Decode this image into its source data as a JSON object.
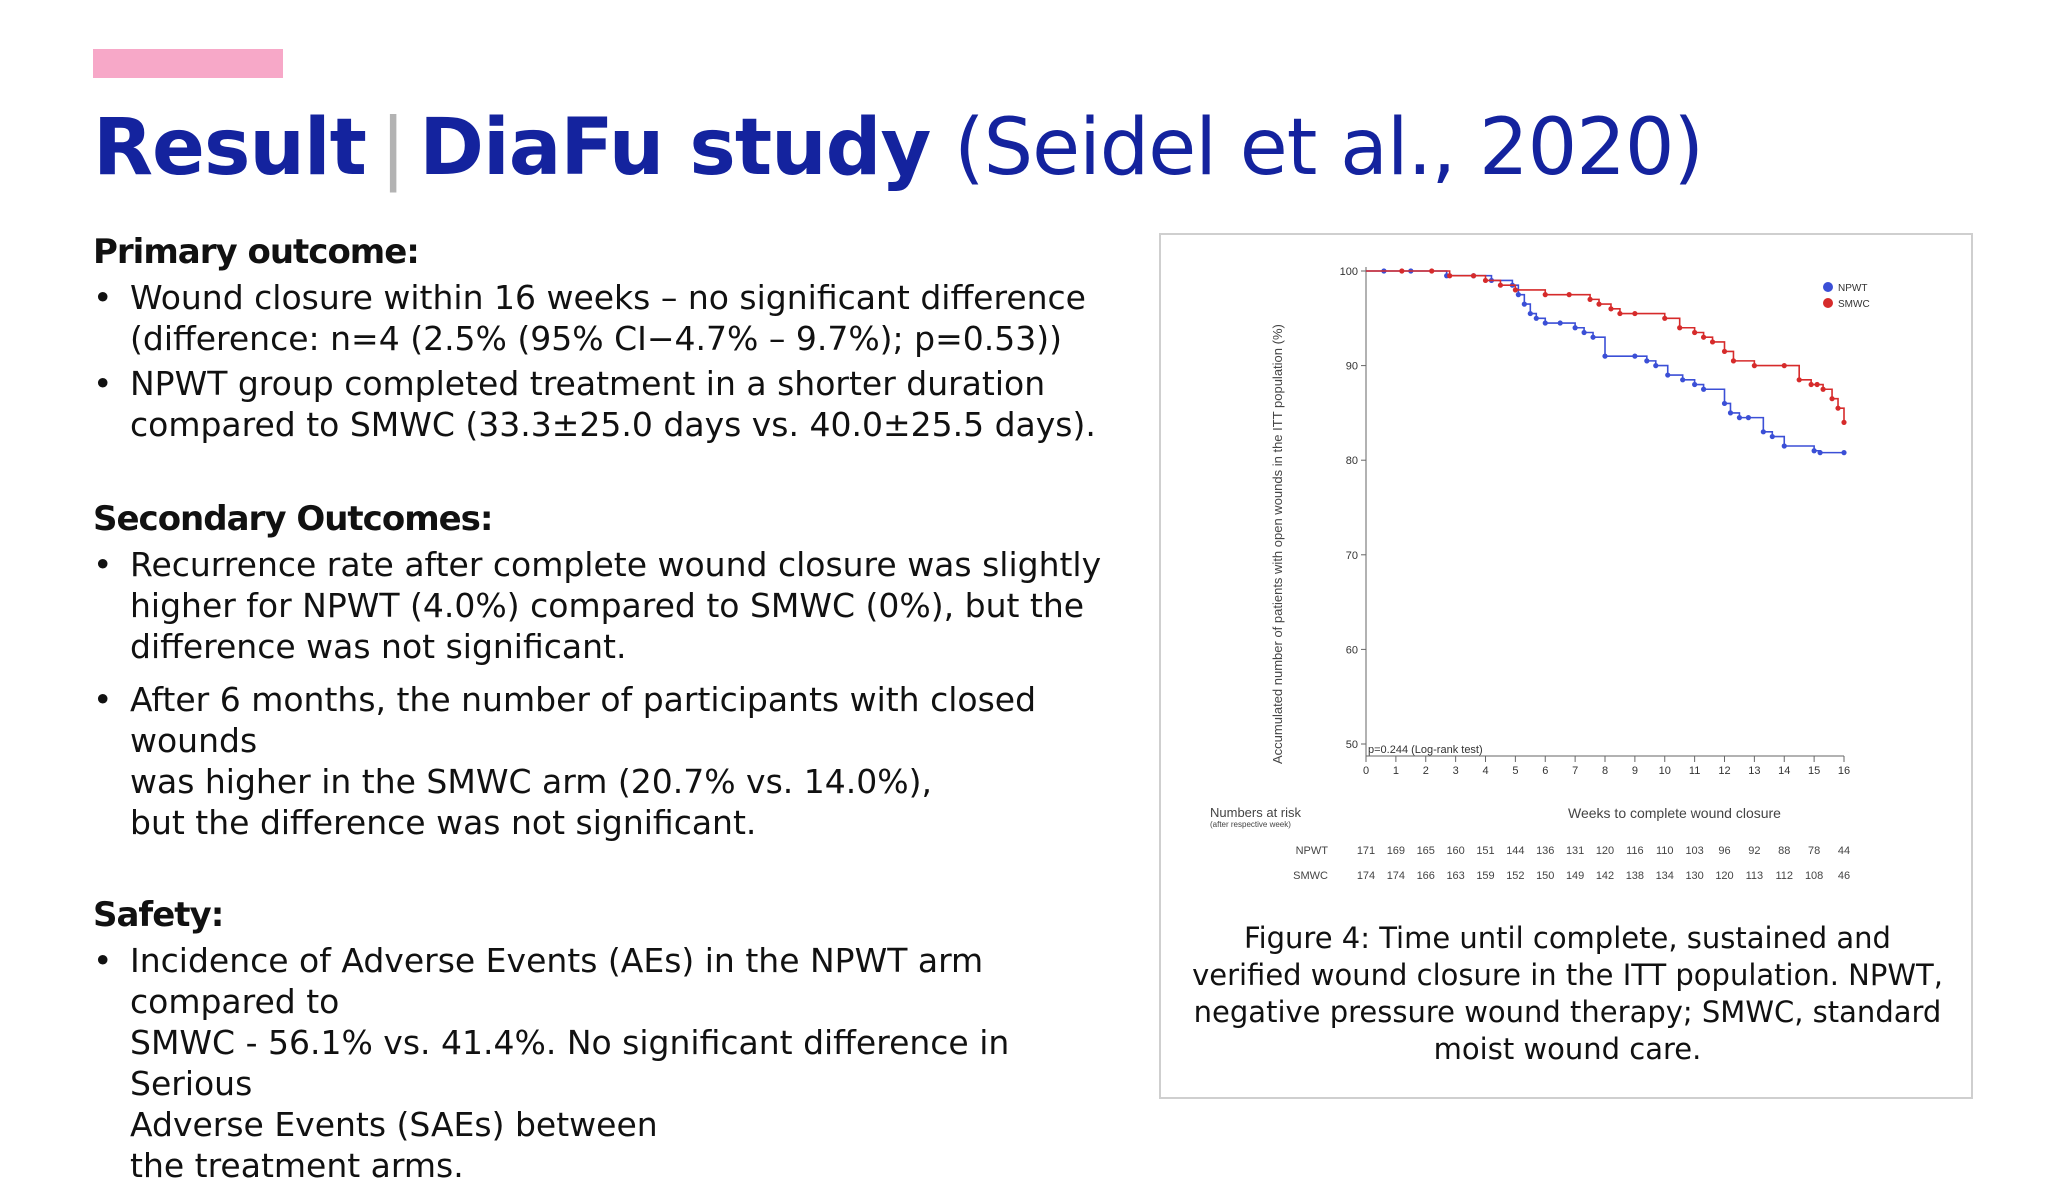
{
  "slide": {
    "title_bold_1": "Result",
    "title_sep": "|",
    "title_bold_2": "DiaFu study",
    "title_normal": "(Seidel et al., 2020)",
    "accent_color": "#f7a8c8",
    "title_color": "#14239e"
  },
  "primary": {
    "heading": "Primary outcome:",
    "items": [
      " Wound closure within 16 weeks – no significant difference\n(difference: n=4 (2.5% (95% CI−4.7% – 9.7%); p=0.53))",
      "NPWT group completed treatment in a shorter duration\ncompared to SMWC (33.3±25.0 days vs. 40.0±25.5 days)."
    ]
  },
  "secondary": {
    "heading": "Secondary Outcomes:",
    "items": [
      "Recurrence rate after complete wound closure was slightly\nhigher for NPWT (4.0%) compared to SMWC (0%), but the\ndifference was not significant.",
      "After 6 months, the number of participants with closed wounds\nwas higher in the SMWC arm (20.7% vs. 14.0%),\nbut the difference was not significant."
    ]
  },
  "safety": {
    "heading": "Safety:",
    "items": [
      "Incidence of Adverse Events (AEs) in the NPWT arm compared to\nSMWC - 56.1% vs. 41.4%. No significant difference in Serious\nAdverse Events (SAEs) between\nthe treatment arms."
    ]
  },
  "figure": {
    "caption": "Figure 4: Time until complete, sustained and verified wound closure in the ITT population. NPWT, negative pressure wound therapy; SMWC, standard moist wound care."
  },
  "chart_data": {
    "type": "line",
    "step": true,
    "ylabel": "Accumulated number of patients with open wounds in the ITT population (%)",
    "xlabel": "Weeks to complete wound closure",
    "xlim": [
      0,
      16
    ],
    "ylim": [
      50,
      100
    ],
    "xticks": [
      0,
      1,
      2,
      3,
      4,
      5,
      6,
      7,
      8,
      9,
      10,
      11,
      12,
      13,
      14,
      15,
      16
    ],
    "yticks": [
      50,
      60,
      70,
      80,
      90,
      100
    ],
    "annotation": "p=0.244 (Log-rank test)",
    "legend_position": "top-right",
    "series": [
      {
        "name": "NPWT",
        "color": "#3b4fd6",
        "x": [
          0,
          0.6,
          1.5,
          2.7,
          3.6,
          4.2,
          4.9,
          5.1,
          5.3,
          5.5,
          5.7,
          6.0,
          6.5,
          7.0,
          7.3,
          7.6,
          8.0,
          9.0,
          9.4,
          9.7,
          10.1,
          10.6,
          11.0,
          11.3,
          12.0,
          12.2,
          12.5,
          12.8,
          13.3,
          13.6,
          14.0,
          15.0,
          15.2,
          16.0
        ],
        "y": [
          100,
          100,
          100,
          99.5,
          99.5,
          99,
          98.5,
          97.5,
          96.5,
          95.5,
          95,
          94.5,
          94.5,
          94,
          93.5,
          93,
          91,
          91,
          90.5,
          90,
          89,
          88.5,
          88,
          87.5,
          86,
          85,
          84.5,
          84.5,
          83,
          82.5,
          81.5,
          81,
          80.8,
          80.8
        ]
      },
      {
        "name": "SMWC",
        "color": "#d62b2b",
        "x": [
          0,
          1.2,
          2.2,
          2.8,
          3.6,
          4.0,
          4.5,
          5.0,
          6.0,
          6.8,
          7.5,
          7.8,
          8.2,
          8.5,
          9.0,
          10.0,
          10.5,
          11.0,
          11.3,
          11.6,
          12.0,
          12.3,
          13.0,
          14.0,
          14.5,
          14.9,
          15.1,
          15.3,
          15.6,
          15.8,
          16.0
        ],
        "y": [
          100,
          100,
          100,
          99.5,
          99.5,
          99,
          98.5,
          98,
          97.5,
          97.5,
          97,
          96.5,
          96,
          95.5,
          95.5,
          95,
          94,
          93.5,
          93,
          92.5,
          91.5,
          90.5,
          90,
          90,
          88.5,
          88,
          88,
          87.5,
          86.5,
          85.5,
          84
        ]
      }
    ],
    "risk_table": {
      "title": "Numbers at risk",
      "subtitle": "(after respective week)",
      "rows": [
        {
          "label": "NPWT",
          "values": [
            171,
            169,
            165,
            160,
            151,
            144,
            136,
            131,
            120,
            116,
            110,
            103,
            96,
            92,
            88,
            78,
            44
          ]
        },
        {
          "label": "SMWC",
          "values": [
            174,
            174,
            166,
            163,
            159,
            152,
            150,
            149,
            142,
            138,
            134,
            130,
            120,
            113,
            112,
            108,
            46
          ]
        }
      ]
    }
  }
}
